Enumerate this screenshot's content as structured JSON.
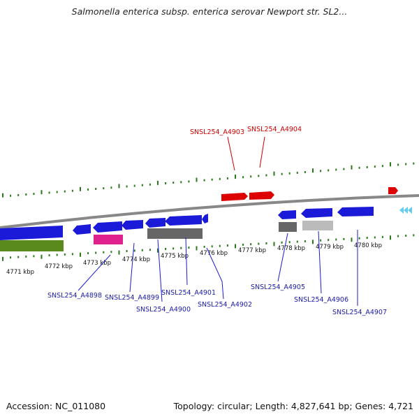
{
  "header": {
    "title": "Salmonella enterica subsp. enterica serovar Newport str. SL2..."
  },
  "footer": {
    "accession": "Accession: NC_011080",
    "summary": "Topology: circular; Length: 4,827,641 bp; Genes: 4,721"
  },
  "colors": {
    "forward_gene": "#dd0000",
    "reverse_gene": "#1a1ad8",
    "backbone": "#888888",
    "tick": "#2a7a1a",
    "label_blue": "#1a1aa8",
    "label_red": "#cc0000",
    "rna_cyan": "#66ccee"
  },
  "scale": {
    "labels": [
      "4771 kbp",
      "4772 kbp",
      "4773 kbp",
      "4774 kbp",
      "4775 kbp",
      "4776 kbp",
      "4777 kbp",
      "4778 kbp",
      "4779 kbp",
      "4780 kbp"
    ]
  },
  "gene_labels": {
    "forward": [
      "SNSL254_A4903",
      "SNSL254_A4904"
    ],
    "reverse": [
      "SNSL254_A4898",
      "SNSL254_A4899",
      "SNSL254_A4900",
      "SNSL254_A4901",
      "SNSL254_A4902",
      "SNSL254_A4905",
      "SNSL254_A4906",
      "SNSL254_A4907"
    ]
  }
}
